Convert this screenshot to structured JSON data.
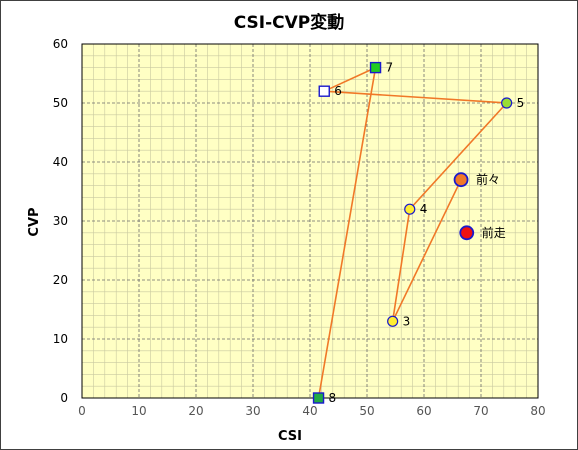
{
  "chart_data": {
    "type": "scatter",
    "title": "CSI-CVP変動",
    "xlabel": "CSI",
    "ylabel": "CVP",
    "xlim": [
      0,
      80
    ],
    "ylim": [
      0,
      60
    ],
    "xticks": [
      0,
      10,
      20,
      30,
      40,
      50,
      60,
      70,
      80
    ],
    "yticks": [
      0,
      10,
      20,
      30,
      40,
      50,
      60
    ],
    "grid": true,
    "colors": {
      "plot_bg": "#ffffc4",
      "grid_major": "#6b6b6b",
      "grid_minor": "#c9c9a0",
      "line": "#f07828"
    },
    "path_order": [
      "8",
      "7",
      "6",
      "5",
      "4",
      "3",
      "前々"
    ],
    "points": [
      {
        "label": "前走",
        "x": 67.5,
        "y": 28,
        "shape": "circle",
        "size": "large",
        "fill": "#ee1111",
        "stroke": "#1a1acc"
      },
      {
        "label": "前々",
        "x": 66.5,
        "y": 37,
        "shape": "circle",
        "size": "large",
        "fill": "#f07828",
        "stroke": "#1a1acc"
      },
      {
        "label": "3",
        "x": 54.5,
        "y": 13,
        "shape": "circle",
        "size": "small",
        "fill": "#ffee33",
        "stroke": "#1a1acc"
      },
      {
        "label": "4",
        "x": 57.5,
        "y": 32,
        "shape": "circle",
        "size": "small",
        "fill": "#ffee33",
        "stroke": "#1a1acc"
      },
      {
        "label": "5",
        "x": 74.5,
        "y": 50,
        "shape": "circle",
        "size": "small",
        "fill": "#99dd33",
        "stroke": "#1a1acc"
      },
      {
        "label": "6",
        "x": 42.5,
        "y": 52,
        "shape": "square",
        "size": "small",
        "fill": "#ffffff",
        "stroke": "#1a1acc"
      },
      {
        "label": "7",
        "x": 51.5,
        "y": 56,
        "shape": "square",
        "size": "small",
        "fill": "#22cc22",
        "stroke": "#1a1acc"
      },
      {
        "label": "8",
        "x": 41.5,
        "y": 0,
        "shape": "square",
        "size": "small",
        "fill": "#22aa44",
        "stroke": "#1a1acc"
      }
    ]
  }
}
